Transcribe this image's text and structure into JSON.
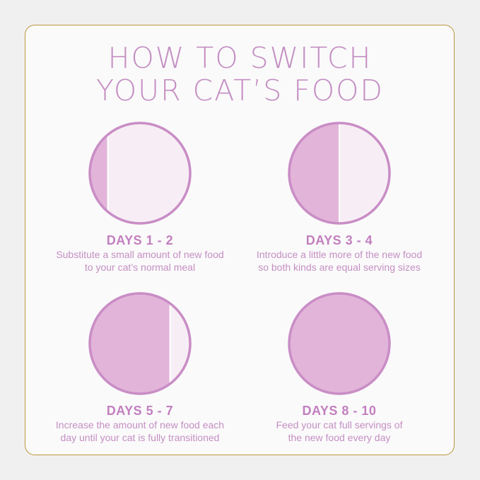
{
  "title": {
    "line1": "HOW TO SWITCH",
    "line2": "YOUR CAT’S FOOD"
  },
  "colors": {
    "accent": "#c48fc3",
    "new_food": "#e2b4d9",
    "old_food": "#f7eef5",
    "ring": "#c98dc5",
    "border": "#b8963e"
  },
  "steps": [
    {
      "days": "DAYS 1 - 2",
      "line1": "Substitute a small amount of new food",
      "line2": "to your cat’s normal meal",
      "new_food_fraction": 0.18
    },
    {
      "days": "DAYS 3 - 4",
      "line1": "Introduce a little more of the new food",
      "line2": "so both kinds are equal serving sizes",
      "new_food_fraction": 0.5
    },
    {
      "days": "DAYS 5 - 7",
      "line1": "Increase the amount of new food each",
      "line2": "day until your cat is fully transitioned",
      "new_food_fraction": 0.8
    },
    {
      "days": "DAYS 8 - 10",
      "line1": "Feed your cat full servings of",
      "line2": "the new food every day",
      "new_food_fraction": 1.0
    }
  ]
}
